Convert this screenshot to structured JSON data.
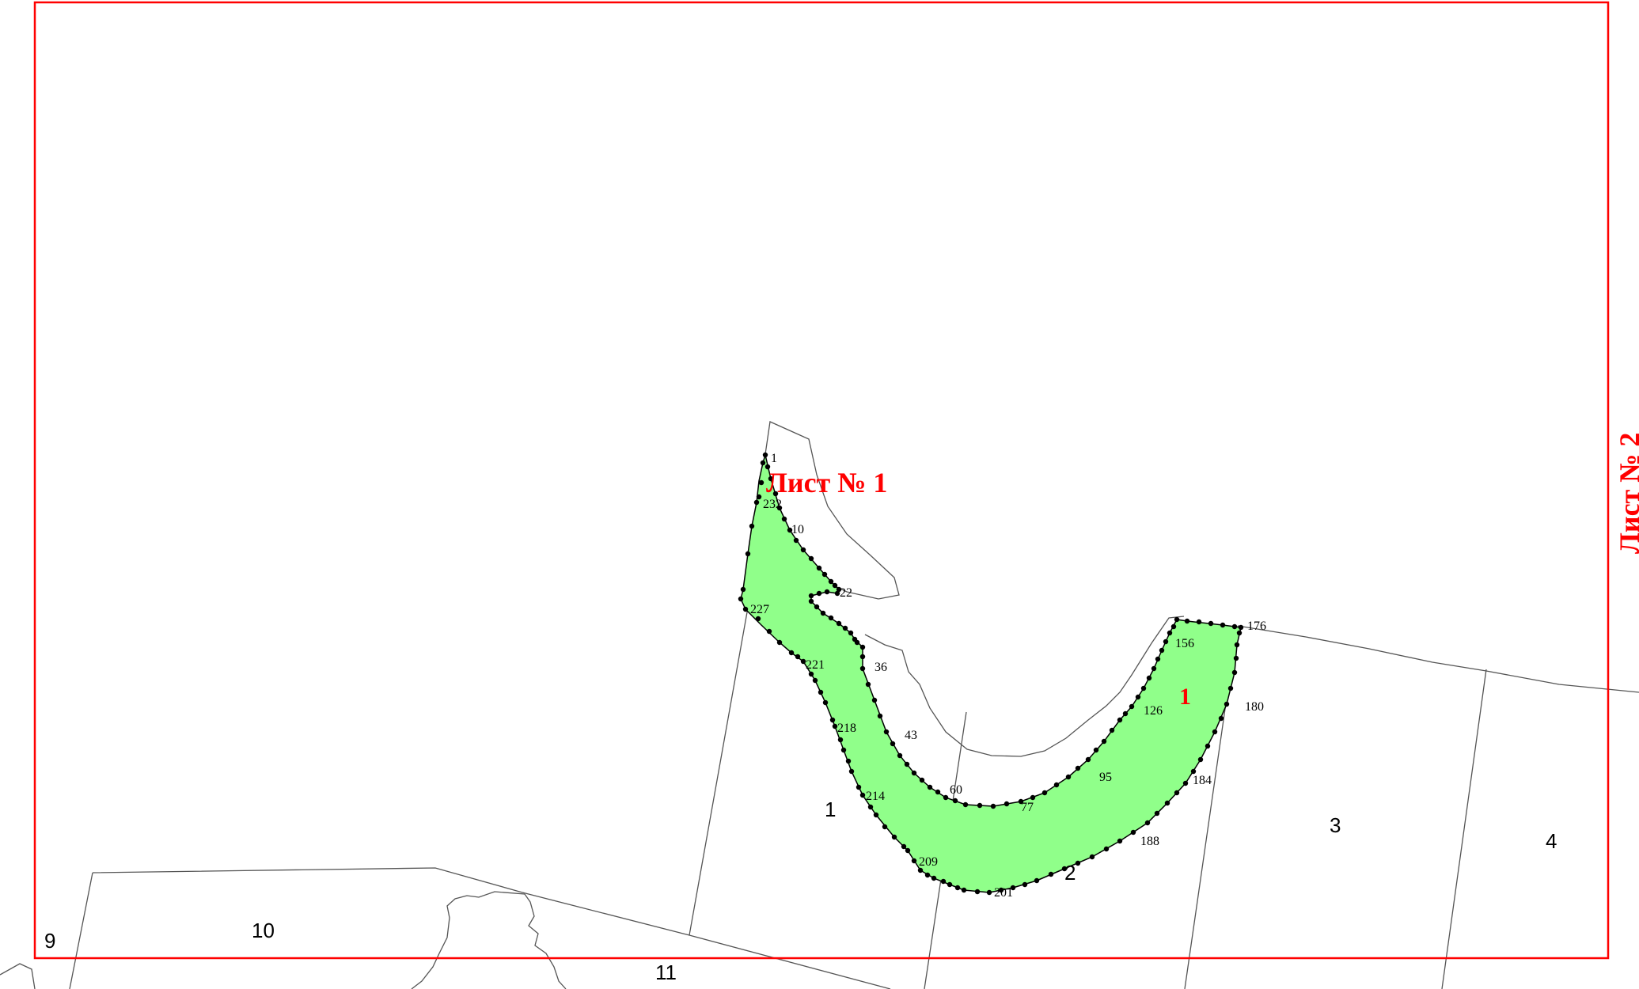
{
  "colors": {
    "frame": "#ff0000",
    "zone_fill": "#90ff8a",
    "boundary_line": "#555555",
    "points": "#000000",
    "sheet_label": "#ff0000"
  },
  "sheets": {
    "current": "Лист № 1",
    "adjacent": "Лист № 2"
  },
  "zone": {
    "label": "1"
  },
  "parcels": [
    "1",
    "2",
    "3",
    "4",
    "9",
    "10",
    "11"
  ],
  "point_labels": [
    "1",
    "232",
    "10",
    "22",
    "227",
    "36",
    "221",
    "43",
    "218",
    "60",
    "214",
    "209",
    "201",
    "77",
    "95",
    "188",
    "184",
    "126",
    "156",
    "176",
    "180"
  ]
}
